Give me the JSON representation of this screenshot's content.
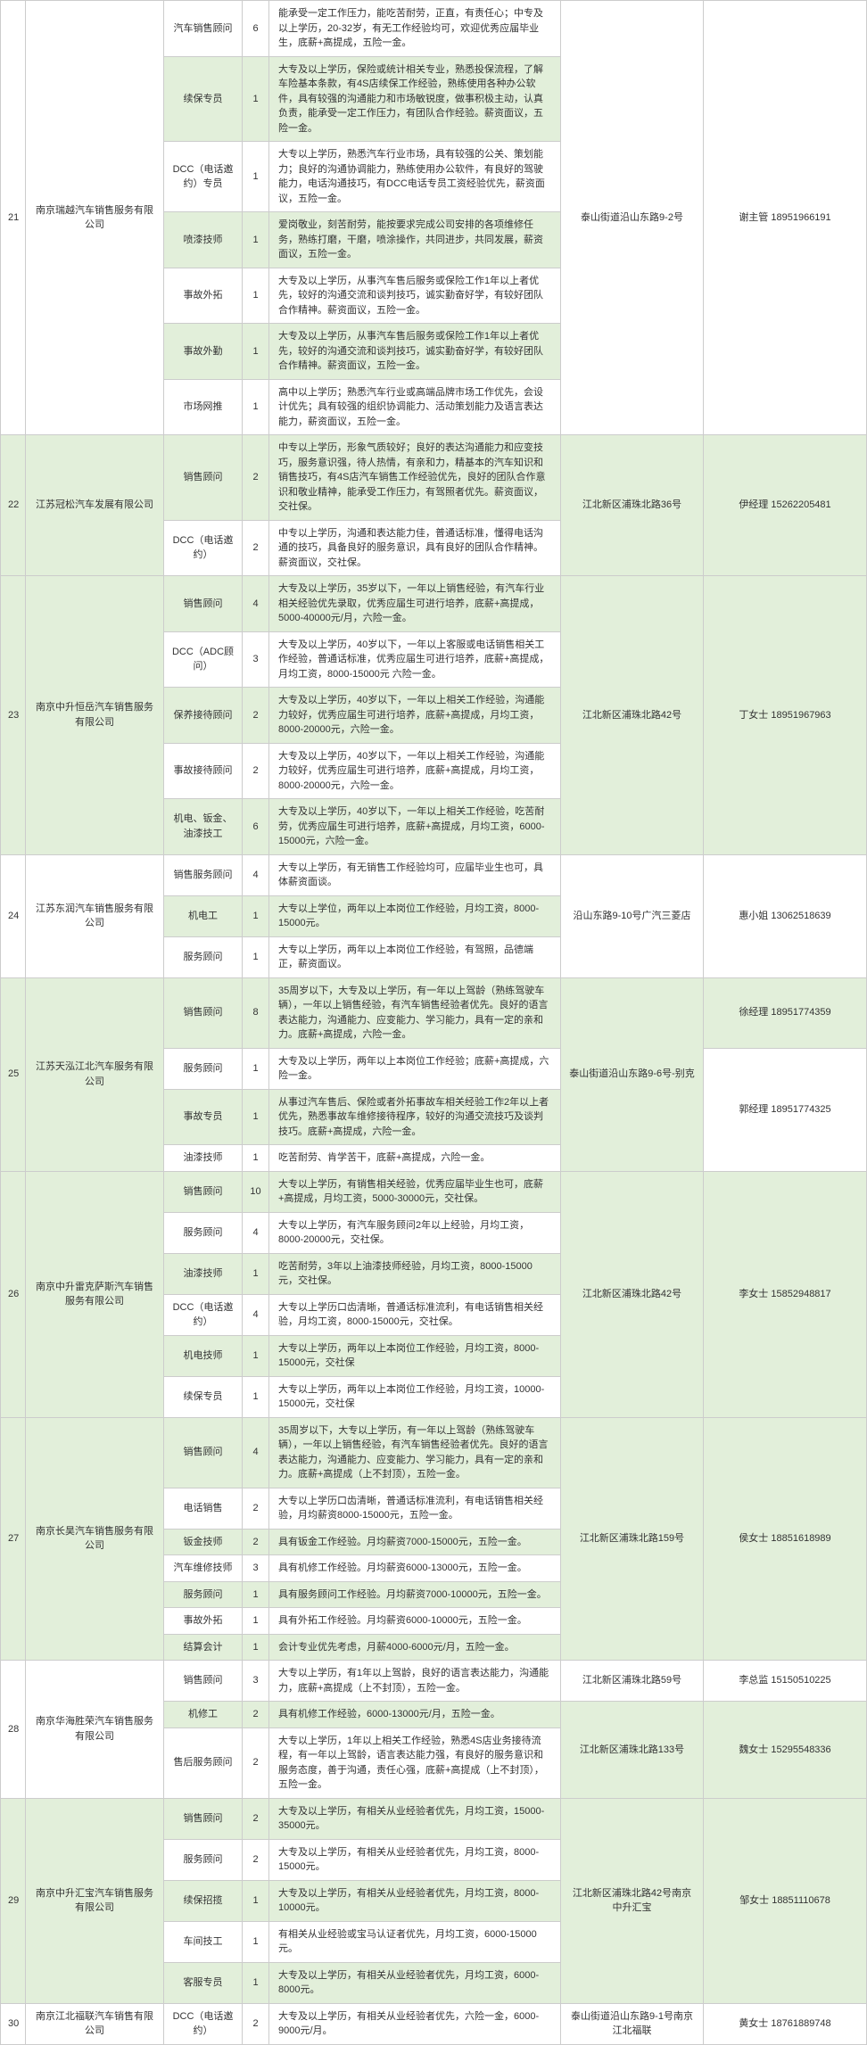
{
  "rows": [
    {
      "idx": "21",
      "co": "南京瑞越汽车销售服务有限公司",
      "addr": "泰山街道沿山东路9-2号",
      "cts": [
        {
          "txt": "谢主管 18951966191",
          "span": 7
        }
      ],
      "posRows": [
        {
          "p": "汽车销售顾问",
          "c": "6",
          "d": "能承受一定工作压力，能吃苦耐劳，正直，有责任心；中专及以上学历，20-32岁，有无工作经验均可，欢迎优秀应届毕业生，底薪+高提成，五险一金。",
          "alt": 0
        },
        {
          "p": "续保专员",
          "c": "1",
          "d": "大专及以上学历，保险或统计相关专业，熟悉投保流程，了解车险基本条款，有4S店续保工作经验，熟练使用各种办公软件，具有较强的沟通能力和市场敏锐度，做事积极主动，认真负责，能承受一定工作压力，有团队合作经验。薪资面议，五险一金。",
          "alt": 1
        },
        {
          "p": "DCC（电话邀约）专员",
          "c": "1",
          "d": "大专以上学历，熟悉汽车行业市场，具有较强的公关、策划能力；良好的沟通协调能力，熟练使用办公软件，有良好的驾驶能力，电话沟通技巧，有DCC电话专员工资经验优先，薪资面议，五险一金。",
          "alt": 0
        },
        {
          "p": "喷漆技师",
          "c": "1",
          "d": "爱岗敬业，刻苦耐劳，能按要求完成公司安排的各项维修任务，熟练打磨，干磨，喷涂操作，共同进步，共同发展，薪资面议，五险一金。",
          "alt": 1
        },
        {
          "p": "事故外拓",
          "c": "1",
          "d": "大专及以上学历，从事汽车售后服务或保险工作1年以上者优先，较好的沟通交流和谈判技巧，诚实勤奋好学，有较好团队合作精神。薪资面议，五险一金。",
          "alt": 0
        },
        {
          "p": "事故外勤",
          "c": "1",
          "d": "大专及以上学历，从事汽车售后服务或保险工作1年以上者优先，较好的沟通交流和谈判技巧，诚实勤奋好学，有较好团队合作精神。薪资面议，五险一金。",
          "alt": 1
        },
        {
          "p": "市场网推",
          "c": "1",
          "d": "高中以上学历；熟悉汽车行业或高端品牌市场工作优先，会设计优先；具有较强的组织协调能力、活动策划能力及语言表达能力，薪资面议，五险一金。",
          "alt": 0
        }
      ]
    },
    {
      "idx": "22",
      "co": "江苏冠松汽车发展有限公司",
      "addr": "江北新区浦珠北路36号",
      "cts": [
        {
          "txt": "伊经理 15262205481",
          "span": 2
        }
      ],
      "posRows": [
        {
          "p": "销售顾问",
          "c": "2",
          "d": "中专以上学历，形象气质较好；良好的表达沟通能力和应变技巧，服务意识强，待人热情，有亲和力，精基本的汽车知识和销售技巧，有4S店汽车销售工作经验优先，良好的团队合作意识和敬业精神，能承受工作压力，有驾照者优先。薪资面议，交社保。",
          "alt": 1
        },
        {
          "p": "DCC（电话邀约）",
          "c": "2",
          "d": "中专以上学历，沟通和表达能力佳，普通话标准，懂得电话沟通的技巧，具备良好的服务意识，具有良好的团队合作精神。薪资面议，交社保。",
          "alt": 0
        }
      ]
    },
    {
      "idx": "23",
      "co": "南京中升恒岳汽车销售服务有限公司",
      "addr": "江北新区浦珠北路42号",
      "cts": [
        {
          "txt": "丁女士 18951967963",
          "span": 5
        }
      ],
      "posRows": [
        {
          "p": "销售顾问",
          "c": "4",
          "d": "大专及以上学历，35岁以下，一年以上销售经验，有汽车行业相关经验优先录取，优秀应届生可进行培养，底薪+高提成，5000-40000元/月，六险一金。",
          "alt": 1
        },
        {
          "p": "DCC（ADC顾问）",
          "c": "3",
          "d": "大专及以上学历，40岁以下，一年以上客服或电话销售相关工作经验，普通话标准，优秀应届生可进行培养，底薪+高提成，月均工资，8000-15000元 六险一金。",
          "alt": 0
        },
        {
          "p": "保养接待顾问",
          "c": "2",
          "d": "大专及以上学历，40岁以下，一年以上相关工作经验，沟通能力较好，优秀应届生可进行培养，底薪+高提成，月均工资，8000-20000元，六险一金。",
          "alt": 1
        },
        {
          "p": "事故接待顾问",
          "c": "2",
          "d": "大专及以上学历，40岁以下，一年以上相关工作经验，沟通能力较好，优秀应届生可进行培养，底薪+高提成，月均工资，8000-20000元，六险一金。",
          "alt": 0
        },
        {
          "p": "机电、钣金、油漆技工",
          "c": "6",
          "d": "大专及以上学历，40岁以下，一年以上相关工作经验，吃苦耐劳，优秀应届生可进行培养，底薪+高提成，月均工资，6000-15000元，六险一金。",
          "alt": 1
        }
      ]
    },
    {
      "idx": "24",
      "co": "江苏东润汽车销售服务有限公司",
      "addr": "沿山东路9-10号广汽三菱店",
      "cts": [
        {
          "txt": "惠小姐 13062518639",
          "span": 3
        }
      ],
      "posRows": [
        {
          "p": "销售服务顾问",
          "c": "4",
          "d": "大专以上学历，有无销售工作经验均可，应届毕业生也可，具体薪资面谈。",
          "alt": 0
        },
        {
          "p": "机电工",
          "c": "1",
          "d": "大专以上学位，两年以上本岗位工作经验，月均工资，8000-15000元。",
          "alt": 1
        },
        {
          "p": "服务顾问",
          "c": "1",
          "d": "大专以上学历，两年以上本岗位工作经验，有驾照，品德端正，薪资面议。",
          "alt": 0
        }
      ]
    },
    {
      "idx": "25",
      "co": "江苏天泓江北汽车服务有限公司",
      "addr": "泰山街道沿山东路9-6号-别克",
      "cts": [
        {
          "txt": "徐经理 18951774359",
          "span": 1
        },
        {
          "txt": "郭经理 18951774325",
          "span": 3
        }
      ],
      "posRows": [
        {
          "p": "销售顾问",
          "c": "8",
          "d": "35周岁以下，大专及以上学历，有一年以上驾龄（熟练驾驶车辆），一年以上销售经验，有汽车销售经验者优先。良好的语言表达能力，沟通能力、应变能力、学习能力，具有一定的亲和力。底薪+高提成，六险一金。",
          "alt": 1
        },
        {
          "p": "服务顾问",
          "c": "1",
          "d": "大专及以上学历，两年以上本岗位工作经验；底薪+高提成，六险一金。",
          "alt": 0
        },
        {
          "p": "事故专员",
          "c": "1",
          "d": "从事过汽车售后、保险或者外拓事故车相关经验工作2年以上者优先，熟悉事故车维修接待程序，较好的沟通交流技巧及谈判技巧。底薪+高提成，六险一金。",
          "alt": 1
        },
        {
          "p": "油漆技师",
          "c": "1",
          "d": "吃苦耐劳、肯学苦干，底薪+高提成，六险一金。",
          "alt": 0
        }
      ]
    },
    {
      "idx": "26",
      "co": "南京中升雷克萨斯汽车销售服务有限公司",
      "addr": "江北新区浦珠北路42号",
      "cts": [
        {
          "txt": "李女士 15852948817",
          "span": 6
        }
      ],
      "posRows": [
        {
          "p": "销售顾问",
          "c": "10",
          "d": "大专以上学历，有销售相关经验，优秀应届毕业生也可，底薪+高提成，月均工资，5000-30000元，交社保。",
          "alt": 1
        },
        {
          "p": "服务顾问",
          "c": "4",
          "d": "大专以上学历，有汽车服务顾问2年以上经验，月均工资，8000-20000元，交社保。",
          "alt": 0
        },
        {
          "p": "油漆技师",
          "c": "1",
          "d": "吃苦耐劳，3年以上油漆技师经验，月均工资，8000-15000元，交社保。",
          "alt": 1
        },
        {
          "p": "DCC（电话邀约）",
          "c": "4",
          "d": "大专以上学历口齿清晰，普通话标准流利，有电话销售相关经验，月均工资，8000-15000元，交社保。",
          "alt": 0
        },
        {
          "p": "机电技师",
          "c": "1",
          "d": "大专以上学历，两年以上本岗位工作经验，月均工资，8000-15000元，交社保",
          "alt": 1
        },
        {
          "p": "续保专员",
          "c": "1",
          "d": "大专以上学历，两年以上本岗位工作经验，月均工资，10000-15000元，交社保",
          "alt": 0
        }
      ]
    },
    {
      "idx": "27",
      "co": "南京长昊汽车销售服务有限公司",
      "addr": "江北新区浦珠北路159号",
      "cts": [
        {
          "txt": "侯女士 18851618989",
          "span": 7
        }
      ],
      "posRows": [
        {
          "p": "销售顾问",
          "c": "4",
          "d": "35周岁以下，大专以上学历，有一年以上驾龄（熟练驾驶车辆），一年以上销售经验，有汽车销售经验者优先。良好的语言表达能力，沟通能力、应变能力、学习能力，具有一定的亲和力。底薪+高提成（上不封顶），五险一金。",
          "alt": 1
        },
        {
          "p": "电话销售",
          "c": "2",
          "d": "大专以上学历口齿清晰，普通话标准流利，有电话销售相关经验，月均薪资8000-15000元，五险一金。",
          "alt": 0
        },
        {
          "p": "钣金技师",
          "c": "2",
          "d": "具有钣金工作经验。月均薪资7000-15000元，五险一金。",
          "alt": 1
        },
        {
          "p": "汽车维修技师",
          "c": "3",
          "d": "具有机修工作经验。月均薪资6000-13000元，五险一金。",
          "alt": 0
        },
        {
          "p": "服务顾问",
          "c": "1",
          "d": "具有服务顾问工作经验。月均薪资7000-10000元，五险一金。",
          "alt": 1
        },
        {
          "p": "事故外拓",
          "c": "1",
          "d": "具有外拓工作经验。月均薪资6000-10000元，五险一金。",
          "alt": 0
        },
        {
          "p": "结算会计",
          "c": "1",
          "d": "会计专业优先考虑，月薪4000-6000元/月，五险一金。",
          "alt": 1
        }
      ]
    },
    {
      "idx": "28",
      "co": "南京华海胜荣汽车销售服务有限公司",
      "addrList": [
        {
          "a": "江北新区浦珠北路59号",
          "span": 1
        },
        {
          "a": "江北新区浦珠北路133号",
          "span": 2
        }
      ],
      "cts": [
        {
          "txt": "李总监 15150510225",
          "span": 1
        },
        {
          "txt": "魏女士 15295548336",
          "span": 2
        }
      ],
      "posRows": [
        {
          "p": "销售顾问",
          "c": "3",
          "d": "大专以上学历，有1年以上驾龄，良好的语言表达能力，沟通能力，底薪+高提成（上不封顶），五险一金。",
          "alt": 0
        },
        {
          "p": "机修工",
          "c": "2",
          "d": "具有机修工作经验，6000-13000元/月，五险一金。",
          "alt": 1
        },
        {
          "p": "售后服务顾问",
          "c": "2",
          "d": "大专以上学历，1年以上相关工作经验，熟悉4S店业务接待流程，有一年以上驾龄，语言表达能力强，有良好的服务意识和服务态度，善于沟通，责任心强，底薪+高提成（上不封顶），五险一金。",
          "alt": 0
        }
      ]
    },
    {
      "idx": "29",
      "co": "南京中升汇宝汽车销售服务有限公司",
      "addr": "江北新区浦珠北路42号南京中升汇宝",
      "cts": [
        {
          "txt": "邹女士 18851110678",
          "span": 5
        }
      ],
      "posRows": [
        {
          "p": "销售顾问",
          "c": "2",
          "d": "大专及以上学历，有相关从业经验者优先，月均工资，15000-35000元。",
          "alt": 1
        },
        {
          "p": "服务顾问",
          "c": "2",
          "d": "大专及以上学历，有相关从业经验者优先，月均工资，8000-15000元。",
          "alt": 0
        },
        {
          "p": "续保招揽",
          "c": "1",
          "d": "大专及以上学历，有相关从业经验者优先，月均工资，8000-10000元。",
          "alt": 1
        },
        {
          "p": "车间技工",
          "c": "1",
          "d": "有相关从业经验或宝马认证者优先，月均工资，6000-15000元。",
          "alt": 0
        },
        {
          "p": "客服专员",
          "c": "1",
          "d": "大专及以上学历，有相关从业经验者优先，月均工资，6000-8000元。",
          "alt": 1
        }
      ]
    },
    {
      "idx": "30",
      "co": "南京江北福联汽车销售有限公司",
      "addr": "泰山街道沿山东路9-1号南京江北福联",
      "cts": [
        {
          "txt": "黄女士 18761889748",
          "span": 1
        }
      ],
      "posRows": [
        {
          "p": "DCC（电话邀约）",
          "c": "2",
          "d": "大专及以上学历，有相关从业经验者优先，六险一金，6000-9000元/月。",
          "alt": 0
        }
      ]
    }
  ]
}
